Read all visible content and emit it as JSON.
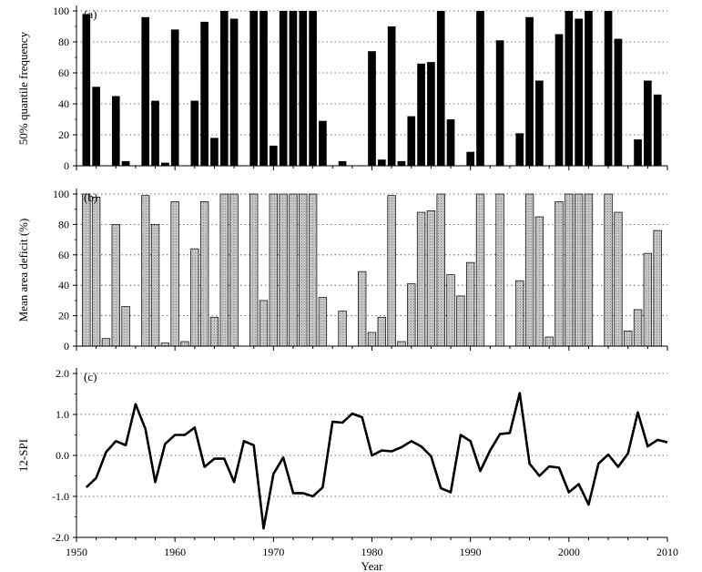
{
  "chart_data": [
    {
      "type": "bar",
      "panel_label": "(a)",
      "xlabel": "",
      "ylabel": "50% quantile frequency",
      "xlim": [
        1950,
        2010
      ],
      "ylim": [
        0,
        100
      ],
      "yticks": [
        0,
        20,
        40,
        60,
        80,
        100
      ],
      "grid": "horizontal dotted",
      "bar_color": "#000000",
      "years": [
        1951,
        1952,
        1954,
        1955,
        1957,
        1958,
        1959,
        1960,
        1962,
        1963,
        1964,
        1965,
        1966,
        1968,
        1969,
        1970,
        1971,
        1972,
        1973,
        1974,
        1975,
        1977,
        1980,
        1981,
        1982,
        1983,
        1984,
        1985,
        1986,
        1987,
        1988,
        1990,
        1991,
        1993,
        1995,
        1996,
        1997,
        1999,
        2000,
        2001,
        2002,
        2004,
        2005,
        2007,
        2008,
        2009
      ],
      "values": [
        98,
        51,
        45,
        3,
        96,
        42,
        2,
        88,
        42,
        93,
        18,
        100,
        95,
        100,
        100,
        13,
        100,
        100,
        100,
        100,
        29,
        3,
        74,
        4,
        90,
        3,
        32,
        66,
        67,
        100,
        30,
        9,
        100,
        81,
        21,
        96,
        55,
        85,
        100,
        95,
        100,
        100,
        82,
        17,
        55,
        46
      ]
    },
    {
      "type": "bar",
      "panel_label": "(b)",
      "xlabel": "",
      "ylabel": "Mean area deficit (%)",
      "xlim": [
        1950,
        2010
      ],
      "ylim": [
        0,
        100
      ],
      "yticks": [
        0,
        20,
        40,
        60,
        80,
        100
      ],
      "grid": "horizontal dotted",
      "bar_color": "#c4c4c4",
      "years": [
        1951,
        1952,
        1953,
        1954,
        1955,
        1957,
        1958,
        1959,
        1960,
        1961,
        1962,
        1963,
        1964,
        1965,
        1966,
        1968,
        1969,
        1970,
        1971,
        1972,
        1973,
        1974,
        1975,
        1977,
        1979,
        1980,
        1981,
        1982,
        1983,
        1984,
        1985,
        1986,
        1987,
        1988,
        1989,
        1990,
        1991,
        1993,
        1995,
        1996,
        1997,
        1998,
        1999,
        2000,
        2001,
        2002,
        2004,
        2005,
        2006,
        2007,
        2008,
        2009
      ],
      "values": [
        100,
        98,
        5,
        80,
        26,
        99,
        80,
        2,
        95,
        3,
        64,
        95,
        19,
        100,
        100,
        100,
        30,
        100,
        100,
        100,
        100,
        100,
        32,
        23,
        49,
        9,
        19,
        99,
        3,
        41,
        88,
        89,
        100,
        47,
        33,
        55,
        100,
        100,
        43,
        100,
        85,
        6,
        95,
        100,
        100,
        100,
        100,
        88,
        10,
        24,
        61,
        76
      ]
    },
    {
      "type": "line",
      "panel_label": "(c)",
      "xlabel": "Year",
      "ylabel": "12-SPI",
      "xlim": [
        1950,
        2010
      ],
      "ylim": [
        -2.0,
        2.0
      ],
      "xticks": [
        1950,
        1960,
        1970,
        1980,
        1990,
        2000,
        2010
      ],
      "yticks": [
        "2.0",
        "1.0",
        "0.0",
        "-1.0",
        "-2.0"
      ],
      "grid": "horizontal dotted",
      "line_color": "#000000",
      "x": [
        1951,
        1952,
        1953,
        1954,
        1955,
        1956,
        1957,
        1958,
        1959,
        1960,
        1961,
        1962,
        1963,
        1964,
        1965,
        1966,
        1967,
        1968,
        1969,
        1970,
        1971,
        1972,
        1973,
        1974,
        1975,
        1976,
        1977,
        1978,
        1979,
        1980,
        1981,
        1982,
        1983,
        1984,
        1985,
        1986,
        1987,
        1988,
        1989,
        1990,
        1991,
        1992,
        1993,
        1994,
        1995,
        1996,
        1997,
        1998,
        1999,
        2000,
        2001,
        2002,
        2003,
        2004,
        2005,
        2006,
        2007,
        2008,
        2009,
        2010
      ],
      "y": [
        -0.78,
        -0.55,
        0.08,
        0.35,
        0.25,
        1.25,
        0.65,
        -0.65,
        0.28,
        0.5,
        0.5,
        0.68,
        -0.28,
        -0.08,
        -0.08,
        -0.65,
        0.35,
        0.25,
        -1.78,
        -0.45,
        -0.05,
        -0.92,
        -0.92,
        -1.0,
        -0.78,
        0.82,
        0.8,
        1.02,
        0.93,
        0.0,
        0.12,
        0.1,
        0.2,
        0.35,
        0.22,
        -0.02,
        -0.8,
        -0.9,
        0.5,
        0.35,
        -0.38,
        0.12,
        0.52,
        0.55,
        1.52,
        -0.2,
        -0.5,
        -0.27,
        -0.3,
        -0.9,
        -0.7,
        -1.2,
        -0.2,
        0.02,
        -0.28,
        0.05,
        1.05,
        0.22,
        0.38,
        0.32
      ]
    }
  ]
}
